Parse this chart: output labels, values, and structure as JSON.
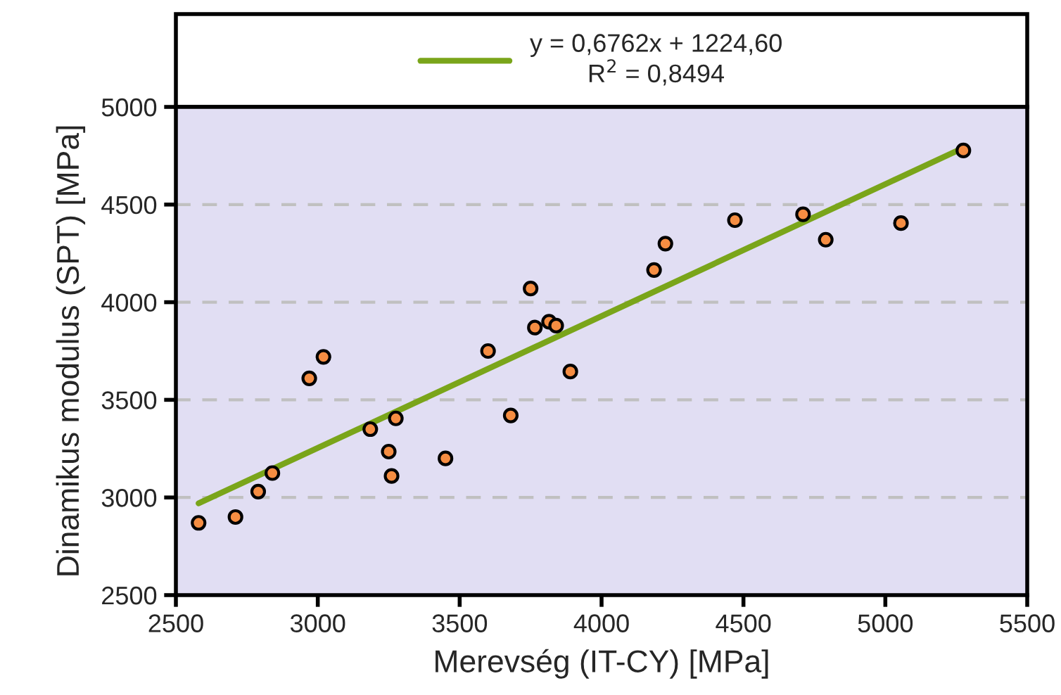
{
  "chart_data": {
    "type": "scatter",
    "xlabel": "Merevség (IT-CY) [MPa]",
    "ylabel": "Dinamikus modulus (SPT) [MPa]",
    "xlim": [
      2500,
      5500
    ],
    "xticks": [
      2500,
      3000,
      3500,
      4000,
      4500,
      5000,
      5500
    ],
    "ylim": [
      2500,
      5000
    ],
    "yticks": [
      2500,
      3000,
      3500,
      4000,
      4500,
      5000
    ],
    "grid": "y",
    "legend": "top",
    "series": [
      {
        "marker": "circle",
        "color": "#f58d42",
        "x": [
          2580,
          2710,
          2790,
          2840,
          2970,
          3020,
          3185,
          3250,
          3260,
          3275,
          3450,
          3600,
          3680,
          3750,
          3765,
          3815,
          3840,
          3890,
          4185,
          4225,
          4470,
          4710,
          4790,
          5055,
          5275
        ],
        "values": [
          2870,
          2900,
          3030,
          3125,
          3610,
          3720,
          3350,
          3235,
          3110,
          3405,
          3200,
          3750,
          3420,
          4070,
          3870,
          3900,
          3880,
          3645,
          4165,
          4300,
          4420,
          4450,
          4320,
          4405,
          4777
        ]
      },
      {
        "type": "line",
        "name": "y = 0,6762x + 1224,60\nR$^{2}$ = 0,8494",
        "color": "#7aa51a",
        "marker": "none",
        "line_style": "solid",
        "x": [
          2580,
          5260
        ],
        "values": [
          2970,
          4780
        ]
      }
    ]
  }
}
